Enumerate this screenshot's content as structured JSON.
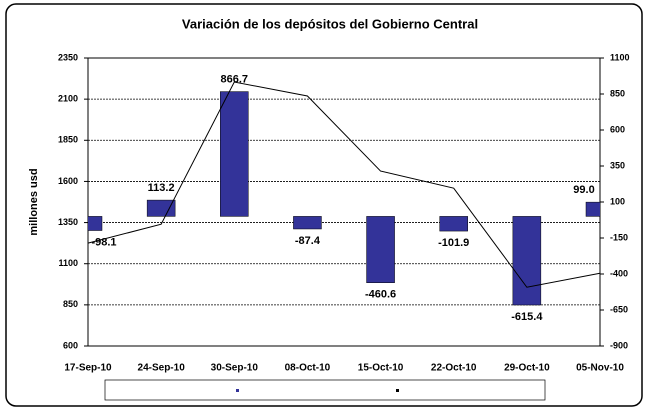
{
  "chart_data": {
    "type": "bar_line",
    "title": "Variación de los depósitos del Gobierno Central",
    "ylabel": "millones usd",
    "categories": [
      "17-Sep-10",
      "24-Sep-10",
      "30-Sep-10",
      "08-Oct-10",
      "15-Oct-10",
      "22-Oct-10",
      "29-Oct-10",
      "05-Nov-10"
    ],
    "series": [
      {
        "type": "bar",
        "axis": "y2",
        "color": "#333399",
        "values": [
          -98.1,
          113.2,
          866.7,
          -87.4,
          -460.6,
          -101.9,
          -615.4,
          99.0
        ],
        "value_labels": [
          "-98.1",
          "113.2",
          "866.7",
          "-87.4",
          "-460.6",
          "-101.9",
          "-615.4",
          "99.0"
        ]
      },
      {
        "type": "line",
        "axis": "y",
        "color": "#000000",
        "values": [
          1225,
          1340,
          2204,
          2119,
          1663,
          1559,
          957,
          1042
        ]
      }
    ],
    "ylim": [
      600,
      2350
    ],
    "yticks": [
      600,
      850,
      1100,
      1350,
      1600,
      1850,
      2100,
      2350
    ],
    "y2lim": [
      -900,
      1100
    ],
    "y2ticks": [
      -900,
      -650,
      -400,
      -150,
      100,
      350,
      600,
      850,
      1100
    ],
    "grid": true
  }
}
